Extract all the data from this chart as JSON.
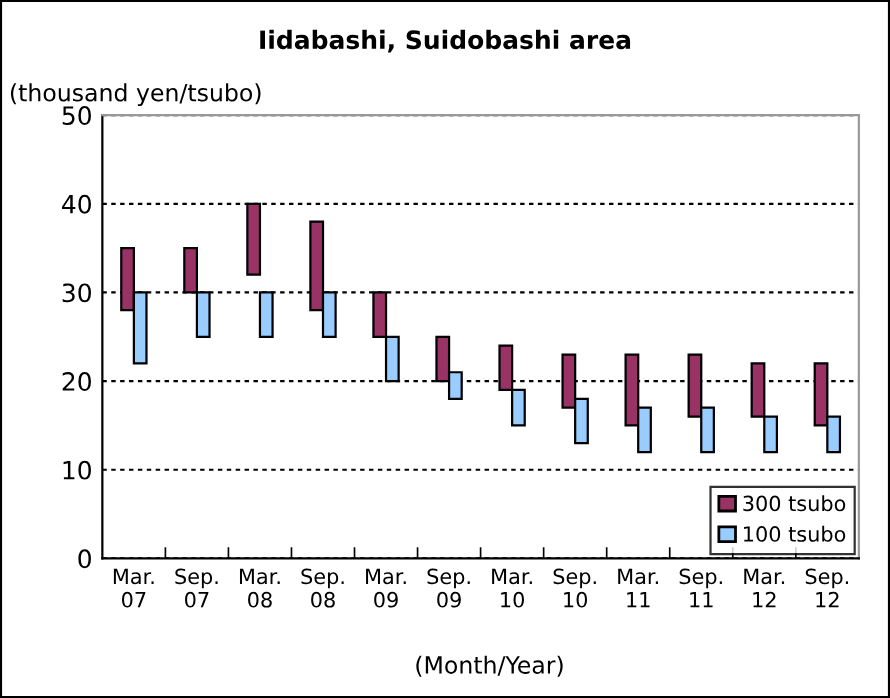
{
  "chart_data": {
    "type": "bar",
    "title": "Iidabashi, Suidobashi area",
    "ylabel": "(thousand yen/tsubo)",
    "xlabel": "(Month/Year)",
    "categories": [
      "Mar.\n07",
      "Sep.\n07",
      "Mar.\n08",
      "Sep.\n08",
      "Mar.\n09",
      "Sep.\n09",
      "Mar.\n10",
      "Sep.\n10",
      "Mar.\n11",
      "Sep.\n11",
      "Mar.\n12",
      "Sep.\n12"
    ],
    "series": [
      {
        "name": "300 tsubo",
        "color": "#993366",
        "base": [
          28,
          30,
          32,
          28,
          25,
          20,
          19,
          17,
          15,
          16,
          16,
          15
        ],
        "values": [
          7,
          5,
          8,
          10,
          5,
          5,
          5,
          6,
          8,
          7,
          6,
          7
        ]
      },
      {
        "name": "100 tsubo",
        "color": "#99ccff",
        "base": [
          22,
          25,
          25,
          25,
          20,
          18,
          15,
          13,
          12,
          12,
          12,
          12
        ],
        "values": [
          8,
          5,
          5,
          5,
          5,
          3,
          4,
          5,
          5,
          5,
          4,
          4
        ]
      }
    ],
    "ylim": [
      0,
      50
    ],
    "yticks": [
      0,
      10,
      20,
      30,
      40,
      50
    ],
    "grid": "y",
    "legend": "bottom right"
  }
}
